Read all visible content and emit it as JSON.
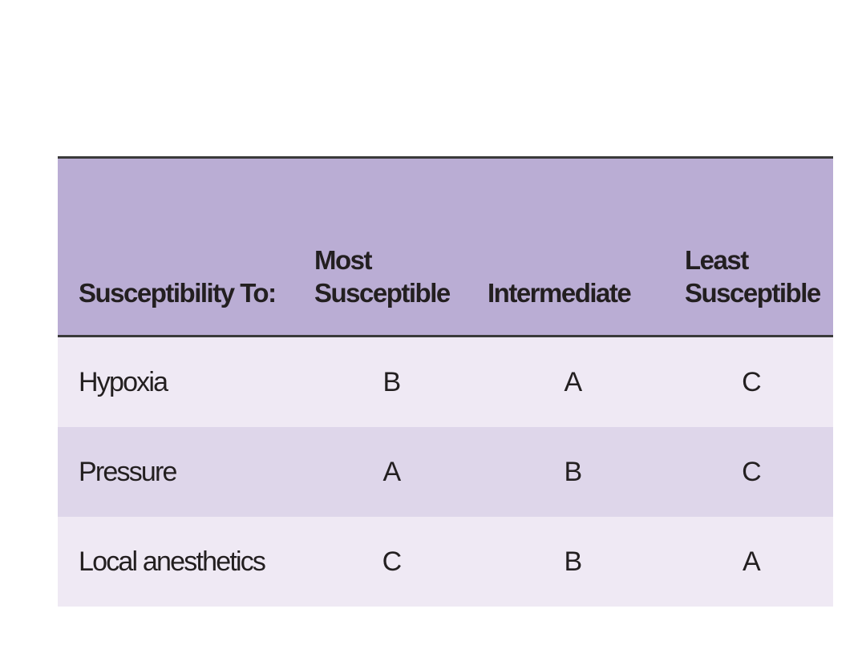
{
  "table": {
    "headers": {
      "col0": "Susceptibility To:",
      "col1_line1": "Most",
      "col1_line2": "Susceptible",
      "col2": "Intermediate",
      "col3_line1": "Least",
      "col3_line2": "Susceptible"
    },
    "rows": [
      {
        "label": "Hypoxia",
        "most": "B",
        "intermediate": "A",
        "least": "C"
      },
      {
        "label": "Pressure",
        "most": "A",
        "intermediate": "B",
        "least": "C"
      },
      {
        "label": "Local anesthetics",
        "most": "C",
        "intermediate": "B",
        "least": "A"
      }
    ],
    "colors": {
      "header_bg": "#baadd4",
      "row_light": "#efe9f4",
      "row_mid": "#ded6ea"
    }
  }
}
